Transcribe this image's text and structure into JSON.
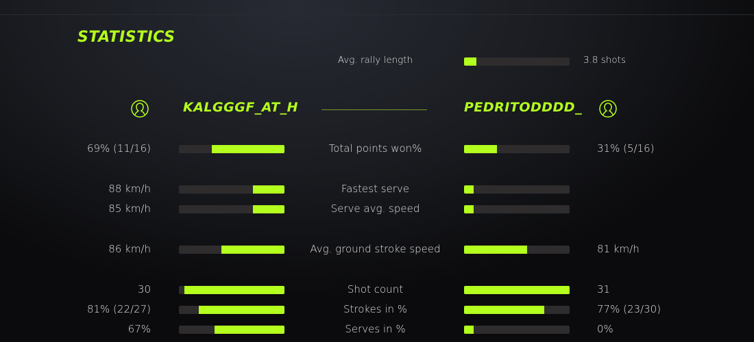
{
  "title": "STATISTICS",
  "accent": "#b4ff1e",
  "rally": {
    "label": "Avg. rally length",
    "value": "3.8 shots",
    "fill": 0.12
  },
  "players": {
    "left": {
      "name": "KALGGGF_AT_H",
      "icon": "user-circle-icon"
    },
    "right": {
      "name": "PEDRITODDDD_",
      "icon": "user-circle-icon"
    }
  },
  "stats": [
    {
      "label": "Total points won%",
      "left": "69% (11/16)",
      "right": "31% (5/16)",
      "left_fill": 0.69,
      "right_fill": 0.31
    },
    {
      "label": "Fastest serve",
      "left": "88 km/h",
      "right": "",
      "left_fill": 0.3,
      "right_fill": 0.09
    },
    {
      "label": "Serve avg. speed",
      "left": "85 km/h",
      "right": "",
      "left_fill": 0.3,
      "right_fill": 0.09
    },
    {
      "label": "Avg. ground stroke speed",
      "left": "86 km/h",
      "right": "81 km/h",
      "left_fill": 0.6,
      "right_fill": 0.6
    },
    {
      "label": "Shot count",
      "left": "30",
      "right": "31",
      "left_fill": 0.95,
      "right_fill": 1.0
    },
    {
      "label": "Strokes in %",
      "left": "81% (22/27)",
      "right": "77% (23/30)",
      "left_fill": 0.81,
      "right_fill": 0.76
    },
    {
      "label": "Serves in %",
      "left": "67%",
      "right": "0%",
      "left_fill": 0.66,
      "right_fill": 0.09
    }
  ]
}
